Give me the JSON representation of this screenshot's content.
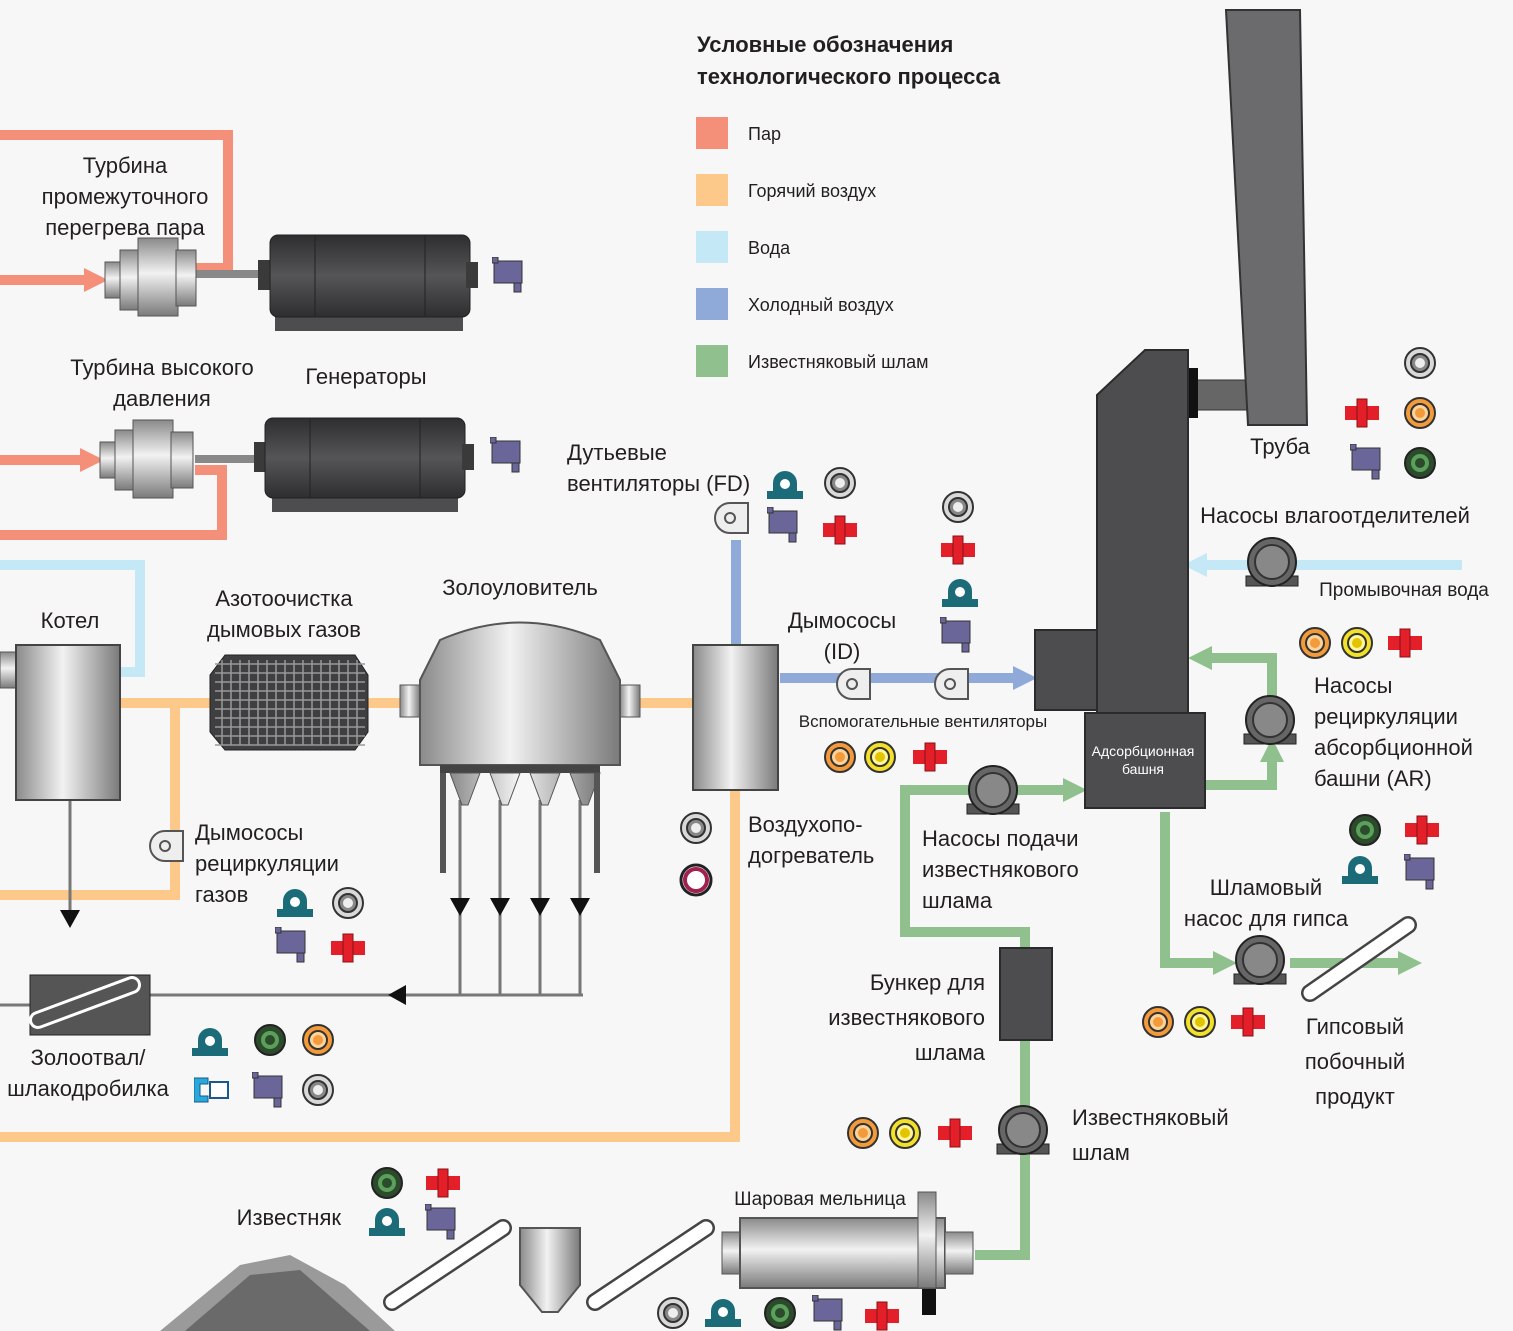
{
  "legend": {
    "title": [
      "Условные обозначения",
      "технологического процесса"
    ],
    "items": [
      {
        "label": "Пар",
        "color": "#f4907a"
      },
      {
        "label": "Горячий воздух",
        "color": "#fcc98a"
      },
      {
        "label": "Вода",
        "color": "#c5e8f7"
      },
      {
        "label": "Холодный воздух",
        "color": "#8fa9d8"
      },
      {
        "label": "Известняковый шлам",
        "color": "#8fc08d"
      }
    ]
  },
  "labels": {
    "reheat_turbine": [
      "Турбина",
      "промежуточного",
      "перегрева пара"
    ],
    "hp_turbine": [
      "Турбина высокого",
      "давления"
    ],
    "generators": "Генераторы",
    "fd_fans": [
      "Дутьевые",
      "вентиляторы (FD)"
    ],
    "boiler": "Котел",
    "denox": [
      "Азотоочистка",
      "дымовых газов"
    ],
    "esp": "Золоуловитель",
    "id_fans": [
      "Дымососы",
      "(ID)"
    ],
    "aux_fans": "Вспомогательные вентиляторы",
    "air_heater": [
      "Воздухопо-",
      "догреватель"
    ],
    "gas_recirc": [
      "Дымососы",
      "рециркуляции",
      "газов"
    ],
    "ash": [
      "Золоотвал/",
      "шлакодробилка"
    ],
    "stack": "Труба",
    "mist_pumps": "Насосы влагоотделителей",
    "wash_water": "Промывочная вода",
    "absorber": [
      "Адсорбционная",
      "башня"
    ],
    "ar_pumps": [
      "Насосы",
      "рециркуляции",
      "абсорбционной",
      "башни (AR)"
    ],
    "slurry_feed": [
      "Насосы подачи",
      "известнякового",
      "шлама"
    ],
    "gypsum_pump": [
      "Шламовый",
      "насос для гипса"
    ],
    "gypsum": [
      "Гипсовый",
      "побочный",
      "продукт"
    ],
    "silo": [
      "Бункер для",
      "известнякового",
      "шлама"
    ],
    "slurry": [
      "Известняковый",
      "шлам"
    ],
    "ball_mill": "Шаровая мельница",
    "limestone": "Известняк"
  }
}
